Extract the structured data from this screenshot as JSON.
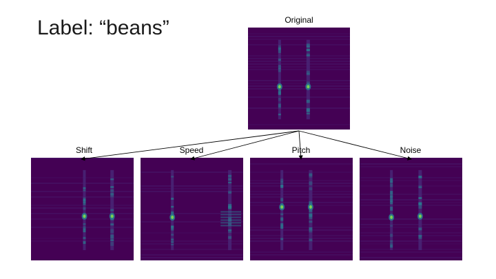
{
  "slide": {
    "label_text": "Label: “beans”"
  },
  "original": {
    "caption": "Original"
  },
  "augmentations": [
    {
      "caption": "Shift"
    },
    {
      "caption": "Speed"
    },
    {
      "caption": "Pitch"
    },
    {
      "caption": "Noise"
    }
  ],
  "colors": {
    "spectrogram_background": "#440154",
    "spectrogram_low": "#482374",
    "spectrogram_mid": "#2a788e",
    "spectrogram_high": "#7ad151",
    "arrow": "#000000"
  }
}
